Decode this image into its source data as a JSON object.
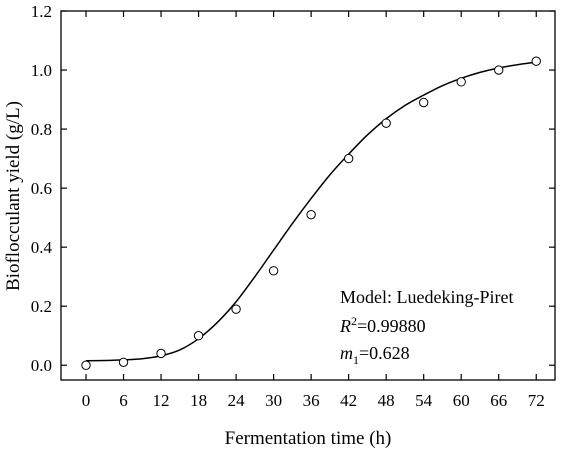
{
  "chart_data": {
    "type": "scatter",
    "xlabel": "Fermentation time (h)",
    "ylabel": "Bioflocculant yield (g/L)",
    "xlim": [
      -4,
      75
    ],
    "ylim": [
      -0.05,
      1.2
    ],
    "xticks": [
      0,
      6,
      12,
      18,
      24,
      30,
      36,
      42,
      48,
      54,
      60,
      66,
      72
    ],
    "yticks": [
      0.0,
      0.2,
      0.4,
      0.6,
      0.8,
      1.0,
      1.2
    ],
    "ytick_labels": [
      "0.0",
      "0.2",
      "0.4",
      "0.6",
      "0.8",
      "1.0",
      "1.2"
    ],
    "grid": false,
    "series": [
      {
        "marker": "open-circle",
        "x": [
          0,
          6,
          12,
          18,
          24,
          30,
          36,
          42,
          48,
          54,
          60,
          66,
          72
        ],
        "y": [
          0.0,
          0.01,
          0.04,
          0.1,
          0.19,
          0.32,
          0.51,
          0.7,
          0.82,
          0.89,
          0.96,
          1.0,
          1.03
        ]
      }
    ],
    "fit_curve": {
      "style": "solid-line",
      "x": [
        0,
        3,
        6,
        9,
        12,
        15,
        18,
        21,
        24,
        27,
        30,
        33,
        36,
        39,
        42,
        45,
        48,
        51,
        54,
        57,
        60,
        63,
        66,
        69,
        72
      ],
      "y": [
        0.015,
        0.016,
        0.018,
        0.022,
        0.032,
        0.052,
        0.09,
        0.145,
        0.215,
        0.3,
        0.39,
        0.48,
        0.565,
        0.645,
        0.715,
        0.78,
        0.835,
        0.88,
        0.915,
        0.947,
        0.972,
        0.992,
        1.007,
        1.018,
        1.027
      ]
    },
    "annotations": {
      "model_text": "Model: Luedeking-Piret",
      "r2_symbol": "R",
      "r2_sup": "2",
      "r2_value": "=0.99880",
      "m_symbol": "m",
      "m_sub": "1",
      "m_value": "=0.628"
    }
  }
}
